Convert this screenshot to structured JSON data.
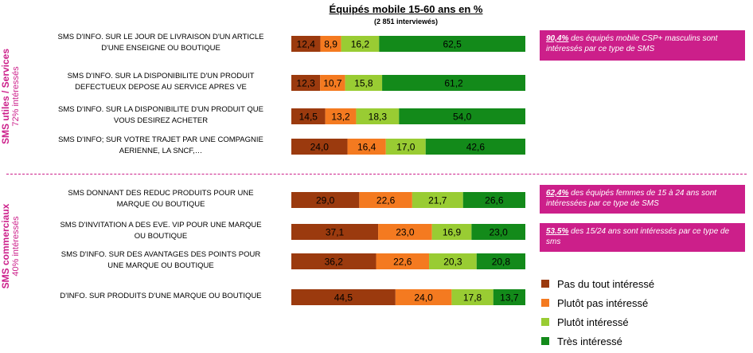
{
  "chart_data": {
    "type": "bar",
    "stacked": "horizontal-100",
    "title": "Équipés mobile 15-60 ans en %",
    "subtitle": "(2 851 interviewés)",
    "series": [
      {
        "name": "Pas du tout intéressé",
        "color": "#9b3a0e"
      },
      {
        "name": "Plutôt pas intéressé",
        "color": "#f47a20"
      },
      {
        "name": "Plutôt intéressé",
        "color": "#99cc33"
      },
      {
        "name": "Très intéressé",
        "color": "#138a1a"
      }
    ],
    "rows": [
      {
        "label_lines": [
          "SMS D'INFO. SUR LE JOUR DE LIVRAISON D'UN ARTICLE",
          "D'UNE ENSEIGNE OU BOUTIQUE"
        ],
        "values": [
          12.4,
          8.9,
          16.2,
          62.5
        ],
        "display": [
          "12,4",
          "8,9",
          "16,2",
          "62,5"
        ]
      },
      {
        "label_lines": [
          "SMS D'INFO. SUR LA DISPONIBILITE D'UN PRODUIT",
          "DEFECTUEUX DEPOSE AU SERVICE APRES VE"
        ],
        "values": [
          12.3,
          10.7,
          15.8,
          61.2
        ],
        "display": [
          "12,3",
          "10,7",
          "15,8",
          "61,2"
        ]
      },
      {
        "label_lines": [
          "SMS D'INFO. SUR LA DISPONIBILITE D'UN PRODUIT QUE",
          "VOUS DESIREZ ACHETER"
        ],
        "values": [
          14.5,
          13.2,
          18.3,
          54.0
        ],
        "display": [
          "14,5",
          "13,2",
          "18,3",
          "54,0"
        ]
      },
      {
        "label_lines": [
          "SMS D'INFO; SUR VOTRE TRAJET PAR UNE COMPAGNIE",
          "AERIENNE, LA SNCF,…"
        ],
        "values": [
          24.0,
          16.4,
          17.0,
          42.6
        ],
        "display": [
          "24,0",
          "16,4",
          "17,0",
          "42,6"
        ]
      },
      {
        "label_lines": [
          "SMS DONNANT DES REDUC PRODUITS POUR UNE",
          "MARQUE OU BOUTIQUE"
        ],
        "values": [
          29.0,
          22.6,
          21.7,
          26.6
        ],
        "display": [
          "29,0",
          "22,6",
          "21,7",
          "26,6"
        ]
      },
      {
        "label_lines": [
          "SMS D'INVITATION A DES EVE. VIP POUR UNE MARQUE",
          "OU BOUTIQUE"
        ],
        "values": [
          37.1,
          23.0,
          16.9,
          23.0
        ],
        "display": [
          "37,1",
          "23,0",
          "16,9",
          "23,0"
        ]
      },
      {
        "label_lines": [
          "SMS D'INFO. SUR DES AVANTAGES DES POINTS POUR",
          "UNE MARQUE OU BOUTIQUE"
        ],
        "values": [
          36.2,
          22.6,
          20.3,
          20.8
        ],
        "display": [
          "36,2",
          "22,6",
          "20,3",
          "20,8"
        ]
      },
      {
        "label_lines": [
          "D'INFO. SUR PRODUITS D'UNE MARQUE OU BOUTIQUE"
        ],
        "values": [
          44.5,
          24.0,
          17.8,
          13.7
        ],
        "display": [
          "44,5",
          "24,0",
          "17,8",
          "13,7"
        ]
      }
    ]
  },
  "sections": [
    {
      "title": "SMS utiles / Services",
      "subtitle": "72% intéressés"
    },
    {
      "title": "SMS commerciaux",
      "subtitle": "40% intéressés"
    }
  ],
  "callouts": [
    {
      "highlight": "90,4%",
      "text": " des équipés mobile CSP+ masculins sont intéressés  par ce type de SMS"
    },
    {
      "highlight": "62,4%",
      "text": " des équipés femmes de 15 à 24 ans sont intéressées  par ce type de SMS"
    },
    {
      "highlight": "53.5%",
      "text": " des 15/24 ans sont intéressés par ce type de sms"
    }
  ]
}
